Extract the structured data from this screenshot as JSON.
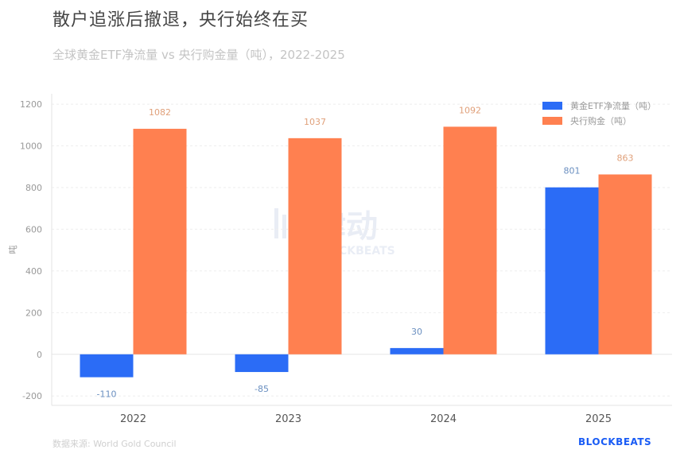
{
  "header": {
    "title": "散户追涨后撤退，央行始终在买",
    "subtitle": "全球黄金ETF净流量 vs 央行购金量（吨），2022-2025"
  },
  "footer": {
    "source": "数据来源: World Gold Council",
    "brand": "BLOCKBEATS"
  },
  "watermark": {
    "text": "律动",
    "subtext": "BLOCKBEATS"
  },
  "chart_data": {
    "type": "bar",
    "title": "散户追涨后撤退，央行始终在买",
    "subtitle": "全球黄金ETF净流量 vs 央行购金量（吨），2022-2025",
    "categories": [
      "2022",
      "2023",
      "2024",
      "2025"
    ],
    "series": [
      {
        "name": "黄金ETF净流量（吨）",
        "values": [
          -110,
          -85,
          30,
          801
        ],
        "color": "#2b6cf6",
        "label_color": "#6a8fc0"
      },
      {
        "name": "央行购金（吨）",
        "values": [
          1082,
          1037,
          1092,
          863
        ],
        "color": "#ff8050",
        "label_color": "#e0a07a"
      }
    ],
    "xlabel": "",
    "ylabel": "吨",
    "ylim": [
      -245,
      1250
    ],
    "yticks": [
      -200,
      0,
      200,
      400,
      600,
      800,
      1000,
      1200
    ],
    "grid": true,
    "legend": "top-right"
  }
}
